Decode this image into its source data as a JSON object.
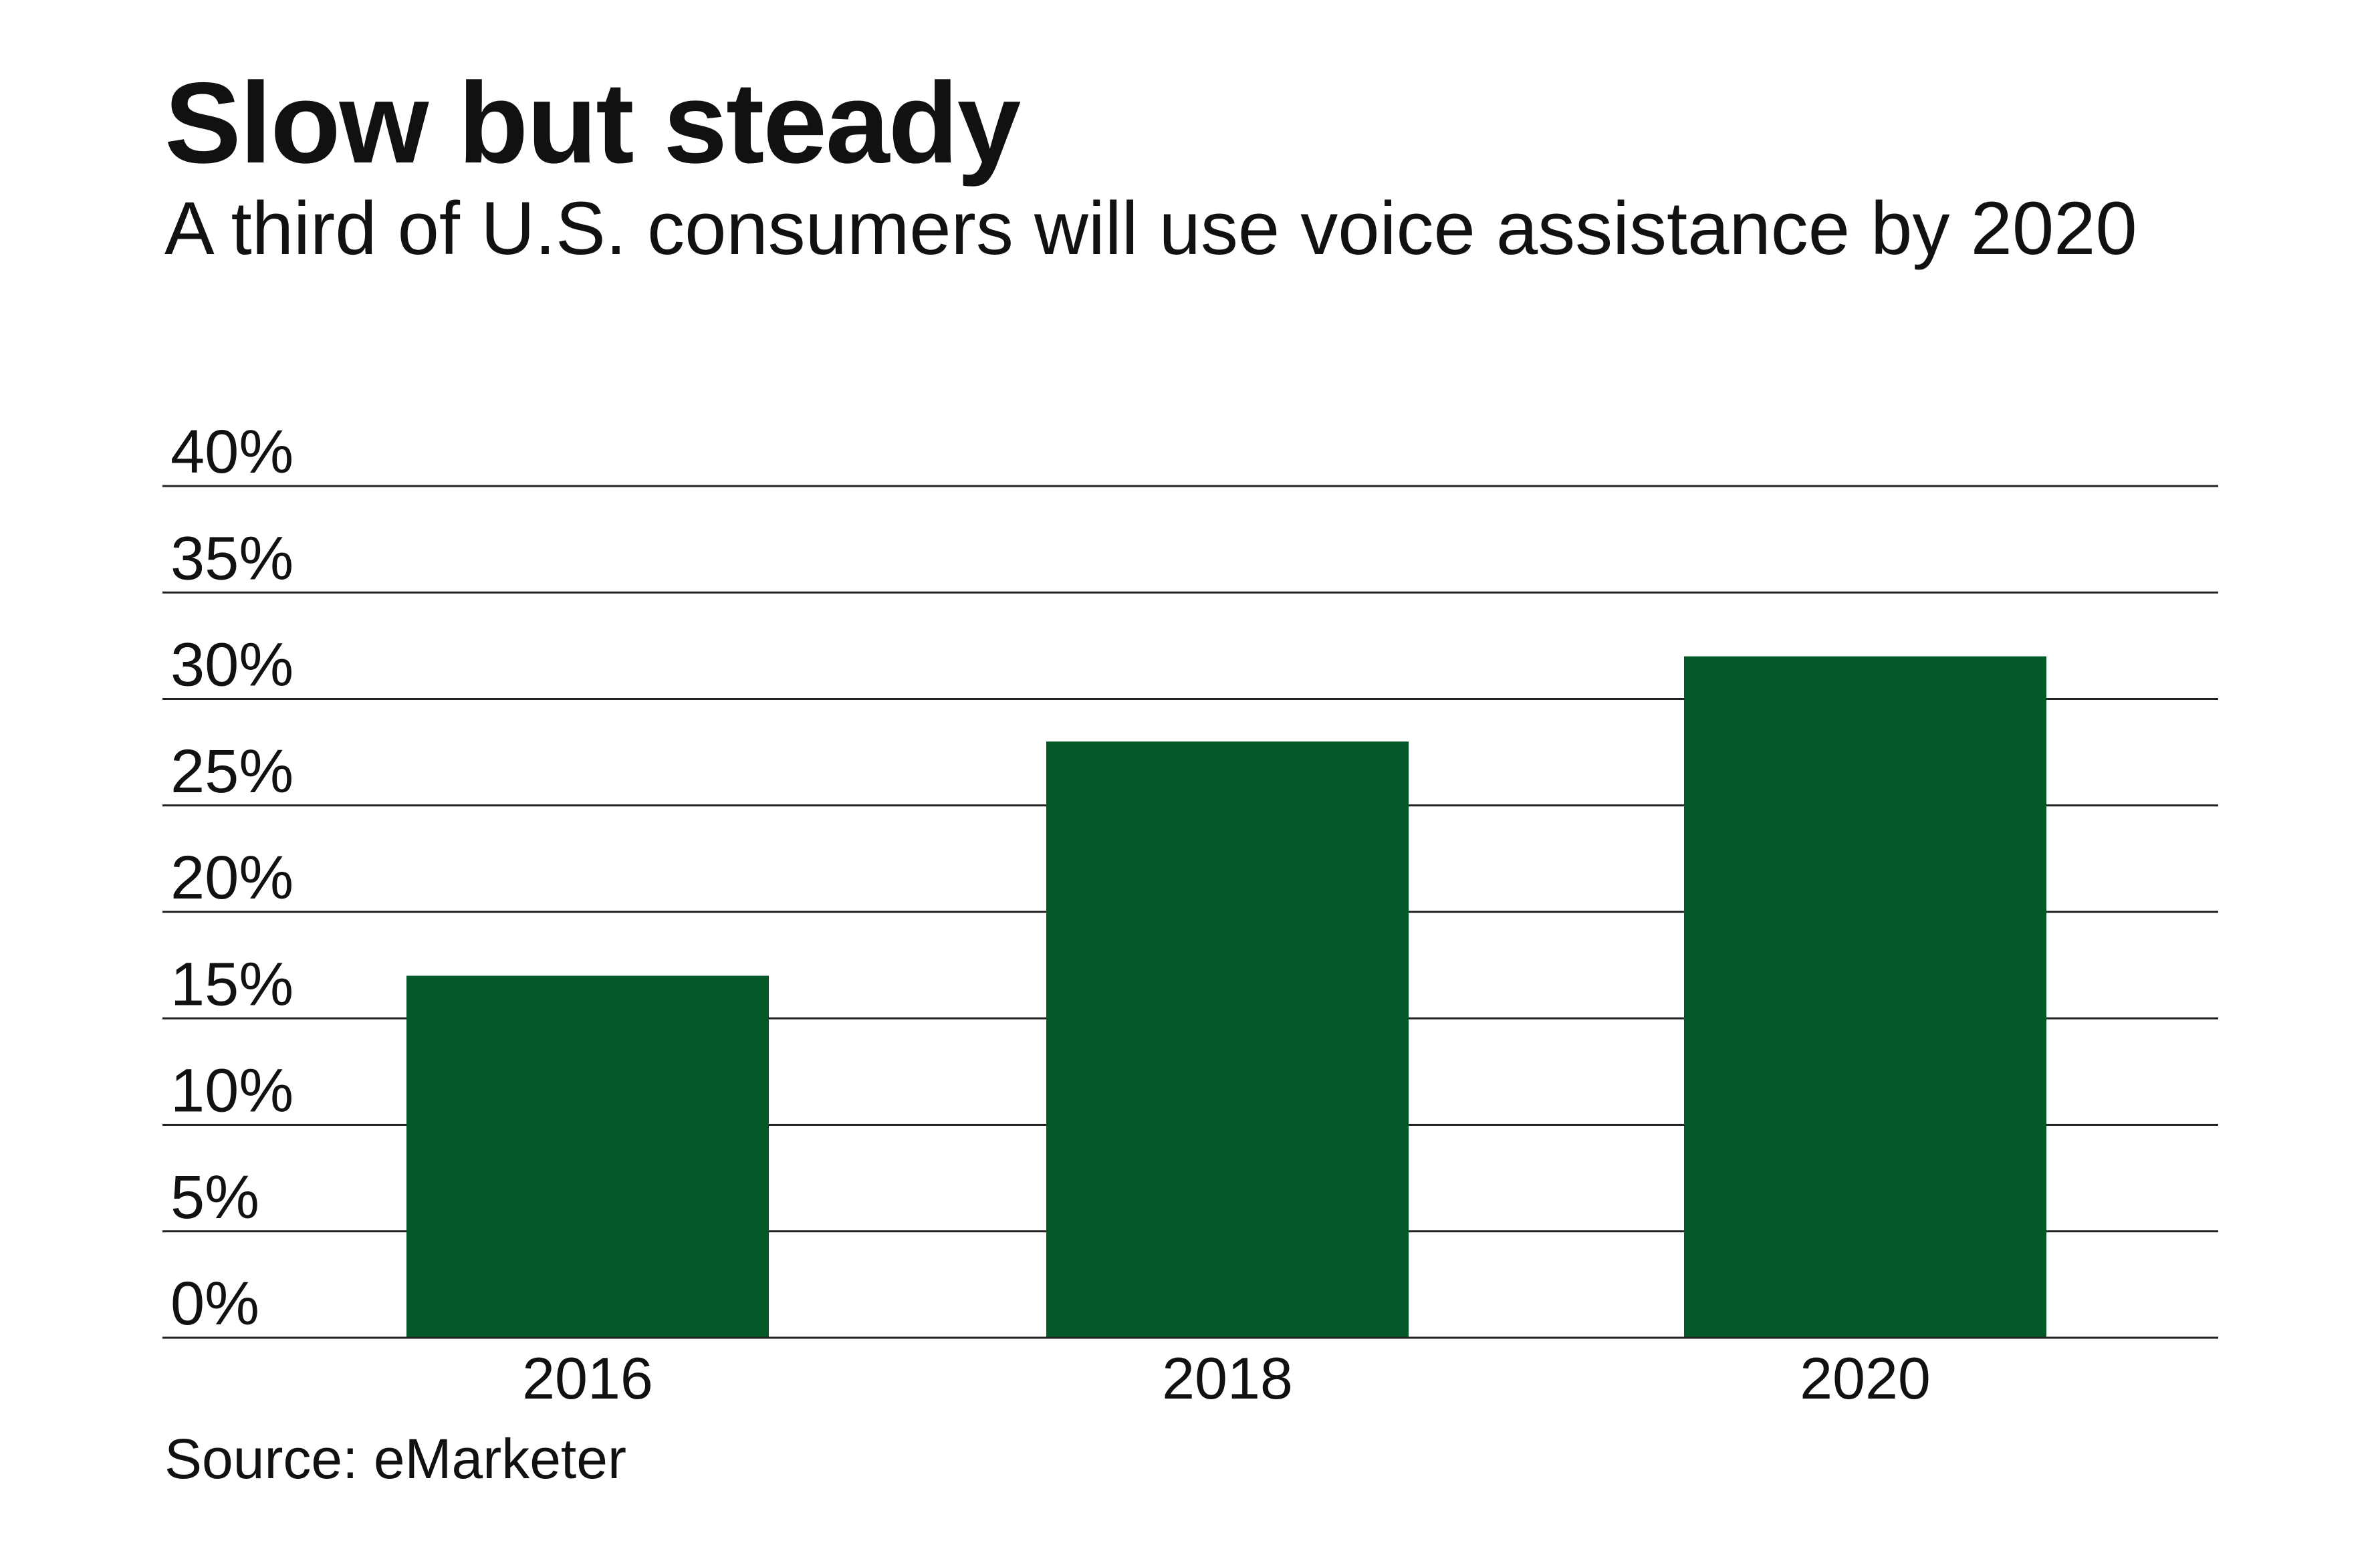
{
  "header": {
    "title": "Slow but steady",
    "subtitle": "A third of U.S. consumers will use voice assistance by 2020"
  },
  "footer": {
    "source": "Source: eMarketer"
  },
  "colors": {
    "bar": "#035a28",
    "grid": "#222222",
    "text": "#111111",
    "background": "#ffffff"
  },
  "chart_data": {
    "type": "bar",
    "title": "Slow but steady",
    "subtitle": "A third of U.S. consumers will use voice assistance by 2020",
    "categories": [
      "2016",
      "2018",
      "2020"
    ],
    "values": [
      17,
      28,
      32
    ],
    "unit": "%",
    "xlabel": "",
    "ylabel": "",
    "ylim": [
      0,
      40
    ],
    "yticks": [
      0,
      5,
      10,
      15,
      20,
      25,
      30,
      35,
      40
    ],
    "ytick_labels": [
      "0%",
      "5%",
      "10%",
      "15%",
      "20%",
      "25%",
      "30%",
      "35%",
      "40%"
    ],
    "grid": true,
    "legend": "none"
  }
}
